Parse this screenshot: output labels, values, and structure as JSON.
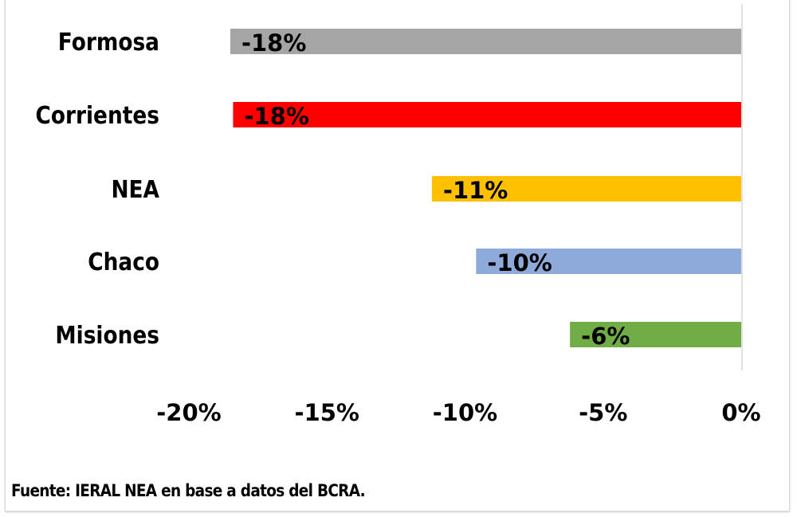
{
  "chart_data": {
    "type": "bar",
    "orientation": "horizontal",
    "categories": [
      "Formosa",
      "Corrientes",
      "NEA",
      "Chaco",
      "Misiones"
    ],
    "values": [
      -18.5,
      -18.4,
      -11.2,
      -9.6,
      -6.2
    ],
    "data_labels": [
      "-18%",
      "-18%",
      "-11%",
      "-10%",
      "-6%"
    ],
    "colors": [
      "#a5a5a5",
      "#ff0000",
      "#ffc000",
      "#8eaadb",
      "#70ad47"
    ],
    "xlim": [
      -20,
      0
    ],
    "xticks": [
      -20,
      -15,
      -10,
      -5,
      0
    ],
    "xtick_labels": [
      "-20%",
      "-15%",
      "-10%",
      "-5%",
      "0%"
    ],
    "title": "",
    "xlabel": "",
    "ylabel": "",
    "grid": false,
    "legend": "none"
  },
  "source": "Fuente: IERAL NEA en base a datos del BCRA."
}
